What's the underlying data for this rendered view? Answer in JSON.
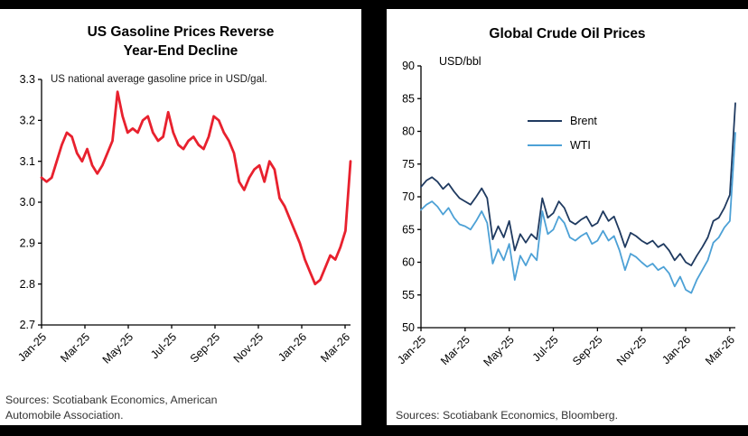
{
  "page": {
    "background": "#000000",
    "panel_background": "#ffffff"
  },
  "left_panel": {
    "title_line1": "US Gasoline Prices Reverse",
    "title_line2": "Year-End Decline",
    "annotation": "US national average gasoline price in USD/gal.",
    "sources": "Sources: Scotiabank Economics, American Automobile Association."
  },
  "right_panel": {
    "title": "Global Crude Oil Prices",
    "axis_unit": "USD/bbl",
    "legend": [
      {
        "label": "Brent",
        "color": "#1f3a60"
      },
      {
        "label": "WTI",
        "color": "#4da1d6"
      }
    ],
    "sources": "Sources: Scotiabank Economics, Bloomberg."
  },
  "chart_data": [
    {
      "type": "line",
      "title": "US Gasoline Prices Reverse Year-End Decline",
      "ylabel": "USD/gal",
      "ylim": [
        2.7,
        3.3
      ],
      "y_ticks": [
        2.7,
        2.8,
        2.9,
        3.0,
        3.1,
        3.2,
        3.3
      ],
      "y_decimals": 1,
      "x_unit": "months since Jan-2025",
      "x_max": 14.25,
      "x_ticks": [
        {
          "m": 0,
          "label": "Jan-25"
        },
        {
          "m": 2,
          "label": "Mar-25"
        },
        {
          "m": 4,
          "label": "May-25"
        },
        {
          "m": 6,
          "label": "Jul-25"
        },
        {
          "m": 8,
          "label": "Sep-25"
        },
        {
          "m": 10,
          "label": "Nov-25"
        },
        {
          "m": 12,
          "label": "Jan-26"
        },
        {
          "m": 14,
          "label": "Mar-26"
        }
      ],
      "grid": false,
      "series": [
        {
          "name": "US national average gasoline price (USD/gal)",
          "color": "#e8212e",
          "width": 2.8,
          "values": [
            3.06,
            3.05,
            3.06,
            3.1,
            3.14,
            3.17,
            3.16,
            3.12,
            3.1,
            3.13,
            3.09,
            3.07,
            3.09,
            3.12,
            3.15,
            3.27,
            3.21,
            3.17,
            3.18,
            3.17,
            3.2,
            3.21,
            3.17,
            3.15,
            3.16,
            3.22,
            3.17,
            3.14,
            3.13,
            3.15,
            3.16,
            3.14,
            3.13,
            3.16,
            3.21,
            3.2,
            3.17,
            3.15,
            3.12,
            3.05,
            3.03,
            3.06,
            3.08,
            3.09,
            3.05,
            3.1,
            3.08,
            3.01,
            2.99,
            2.96,
            2.93,
            2.9,
            2.86,
            2.83,
            2.8,
            2.81,
            2.84,
            2.87,
            2.86,
            2.89,
            2.93,
            3.1
          ]
        }
      ]
    },
    {
      "type": "line",
      "title": "Global Crude Oil Prices",
      "ylabel": "USD/bbl",
      "ylim": [
        50,
        90
      ],
      "y_ticks": [
        50,
        55,
        60,
        65,
        70,
        75,
        80,
        85,
        90
      ],
      "y_decimals": 0,
      "x_unit": "months since Jan-2025",
      "x_max": 14.25,
      "x_ticks": [
        {
          "m": 0,
          "label": "Jan-25"
        },
        {
          "m": 2,
          "label": "Mar-25"
        },
        {
          "m": 4,
          "label": "May-25"
        },
        {
          "m": 6,
          "label": "Jul-25"
        },
        {
          "m": 8,
          "label": "Sep-25"
        },
        {
          "m": 10,
          "label": "Nov-25"
        },
        {
          "m": 12,
          "label": "Jan-26"
        },
        {
          "m": 14,
          "label": "Mar-26"
        }
      ],
      "grid": false,
      "legend_position": "upper-center",
      "series": [
        {
          "name": "Brent",
          "color": "#1f3a60",
          "width": 1.8,
          "values": [
            71.5,
            72.5,
            73.0,
            72.3,
            71.2,
            72.0,
            70.8,
            69.8,
            69.3,
            68.8,
            70.0,
            71.3,
            69.8,
            63.5,
            65.5,
            63.8,
            66.3,
            61.8,
            64.3,
            63.0,
            64.3,
            63.5,
            69.8,
            66.8,
            67.5,
            69.3,
            68.3,
            66.3,
            65.8,
            66.5,
            67.0,
            65.5,
            66.0,
            67.8,
            66.3,
            67.0,
            64.8,
            62.3,
            64.5,
            64.0,
            63.3,
            62.8,
            63.3,
            62.3,
            62.8,
            61.8,
            60.3,
            61.3,
            60.0,
            59.5,
            61.0,
            62.3,
            63.8,
            66.3,
            66.8,
            68.3,
            70.3,
            84.3
          ]
        },
        {
          "name": "WTI",
          "color": "#4da1d6",
          "width": 1.8,
          "values": [
            68.0,
            68.8,
            69.3,
            68.5,
            67.3,
            68.3,
            66.8,
            65.8,
            65.5,
            65.0,
            66.3,
            67.8,
            66.0,
            59.8,
            62.0,
            60.3,
            62.8,
            57.3,
            61.0,
            59.5,
            61.3,
            60.3,
            67.8,
            64.3,
            65.0,
            67.0,
            66.0,
            63.8,
            63.3,
            64.0,
            64.5,
            62.8,
            63.3,
            64.8,
            63.3,
            64.0,
            61.8,
            58.8,
            61.3,
            60.8,
            60.0,
            59.3,
            59.8,
            58.8,
            59.3,
            58.3,
            56.3,
            57.8,
            55.8,
            55.3,
            57.3,
            58.8,
            60.3,
            63.0,
            63.8,
            65.3,
            66.3,
            79.8
          ]
        }
      ]
    }
  ]
}
